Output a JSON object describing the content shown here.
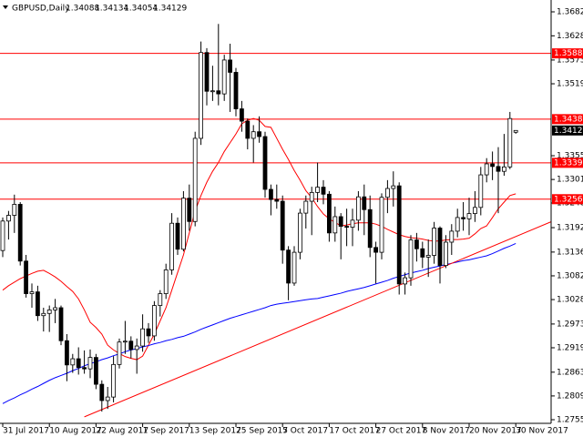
{
  "chart_data": {
    "type": "candlestick",
    "title": "GBPUSD,Daily",
    "categories": [
      "31 Jul 2017",
      null,
      null,
      null,
      null,
      null,
      null,
      null,
      "10 Aug 2017",
      null,
      null,
      null,
      null,
      null,
      null,
      null,
      "22 Aug 2017",
      null,
      null,
      null,
      null,
      null,
      null,
      null,
      "1 Sep 2017",
      null,
      null,
      null,
      null,
      null,
      null,
      null,
      "13 Sep 2017",
      null,
      null,
      null,
      null,
      null,
      null,
      null,
      "25 Sep 2017",
      null,
      null,
      null,
      null,
      null,
      null,
      null,
      "5 Oct 2017",
      null,
      null,
      null,
      null,
      null,
      null,
      null,
      "17 Oct 2017",
      null,
      null,
      null,
      null,
      null,
      null,
      null,
      "27 Oct 2017",
      null,
      null,
      null,
      null,
      null,
      null,
      null,
      "8 Nov 2017",
      null,
      null,
      null,
      null,
      null,
      null,
      null,
      "20 Nov 2017",
      null,
      null,
      null,
      null,
      null,
      null,
      null,
      "30 Nov 2017"
    ],
    "open": [
      1.314,
      1.3207,
      1.322,
      1.3245,
      1.3116,
      1.3042,
      1.3046,
      1.2992,
      1.2997,
      1.3005,
      1.301,
      1.2935,
      1.288,
      1.2894,
      1.2874,
      1.2871,
      1.2897,
      1.2836,
      1.2799,
      1.2807,
      1.2881,
      1.2932,
      1.2934,
      1.2915,
      1.2923,
      1.2962,
      1.2946,
      1.3015,
      1.3042,
      1.3096,
      1.3202,
      1.3143,
      1.3259,
      1.3206,
      1.3395,
      1.359,
      1.3502,
      1.3503,
      1.3496,
      1.3573,
      1.3545,
      1.3462,
      1.3434,
      1.3395,
      1.341,
      1.3399,
      1.3279,
      1.3256,
      1.3252,
      1.3141,
      1.3066,
      1.3136,
      1.3225,
      1.3252,
      1.3272,
      1.3284,
      1.3268,
      1.318,
      1.3217,
      1.3195,
      1.3193,
      1.3209,
      1.3262,
      1.3233,
      1.3147,
      1.3136,
      1.3261,
      1.3281,
      1.3287,
      1.3064,
      1.3078,
      1.3164,
      1.3144,
      1.3125,
      1.3129,
      1.3191,
      1.3106,
      1.3159,
      1.3184,
      1.3215,
      1.3212,
      1.3224,
      1.3238,
      1.3312,
      1.3337,
      1.3331,
      1.332,
      1.333,
      1.34088
    ],
    "high": [
      1.3215,
      1.323,
      1.3267,
      1.325,
      1.313,
      1.3065,
      1.306,
      1.301,
      1.3015,
      1.303,
      1.3015,
      1.295,
      1.2905,
      1.292,
      1.2913,
      1.2915,
      1.2905,
      1.2845,
      1.283,
      1.29,
      1.294,
      1.298,
      1.2945,
      1.294,
      1.2995,
      1.2975,
      1.3025,
      1.305,
      1.311,
      1.3225,
      1.3215,
      1.3275,
      1.329,
      1.341,
      1.3615,
      1.36,
      1.356,
      1.3655,
      1.3585,
      1.361,
      1.3555,
      1.348,
      1.344,
      1.3425,
      1.3445,
      1.341,
      1.329,
      1.329,
      1.3265,
      1.315,
      1.315,
      1.3235,
      1.3265,
      1.3285,
      1.334,
      1.33,
      1.3275,
      1.324,
      1.3225,
      1.3235,
      1.3235,
      1.3275,
      1.329,
      1.3265,
      1.316,
      1.327,
      1.33,
      1.332,
      1.3295,
      1.309,
      1.3175,
      1.318,
      1.316,
      1.3165,
      1.3205,
      1.3195,
      1.3175,
      1.32,
      1.3235,
      1.325,
      1.326,
      1.3275,
      1.333,
      1.335,
      1.3365,
      1.3375,
      1.3405,
      1.3455,
      1.34134
    ],
    "low": [
      1.3125,
      1.3165,
      1.318,
      1.3106,
      1.3033,
      1.301,
      1.298,
      1.2956,
      1.2955,
      1.2975,
      1.2925,
      1.2843,
      1.2862,
      1.2858,
      1.286,
      1.285,
      1.2825,
      1.2774,
      1.278,
      1.2795,
      1.2872,
      1.2905,
      1.2895,
      1.286,
      1.291,
      1.293,
      1.2935,
      1.299,
      1.303,
      1.3085,
      1.313,
      1.3138,
      1.3185,
      1.3195,
      1.338,
      1.347,
      1.348,
      1.347,
      1.348,
      1.3455,
      1.3445,
      1.341,
      1.337,
      1.334,
      1.3385,
      1.326,
      1.322,
      1.3235,
      1.311,
      1.3027,
      1.306,
      1.312,
      1.319,
      1.3175,
      1.325,
      1.3245,
      1.316,
      1.316,
      1.312,
      1.315,
      1.315,
      1.3185,
      1.3175,
      1.3125,
      1.3065,
      1.312,
      1.3225,
      1.324,
      1.304,
      1.304,
      1.306,
      1.3115,
      1.31,
      1.308,
      1.311,
      1.3065,
      1.31,
      1.313,
      1.317,
      1.3185,
      1.3175,
      1.3205,
      1.322,
      1.3295,
      1.33,
      1.3225,
      1.331,
      1.3325,
      1.34054
    ],
    "close": [
      1.3207,
      1.322,
      1.3245,
      1.3116,
      1.3042,
      1.3046,
      1.2992,
      1.2997,
      1.3005,
      1.301,
      1.2935,
      1.288,
      1.2894,
      1.2874,
      1.2871,
      1.2897,
      1.2836,
      1.2799,
      1.2807,
      1.2881,
      1.2932,
      1.2934,
      1.2915,
      1.2923,
      1.2962,
      1.2946,
      1.3015,
      1.3042,
      1.3096,
      1.3202,
      1.3143,
      1.3259,
      1.3206,
      1.3395,
      1.359,
      1.3502,
      1.3503,
      1.3496,
      1.3573,
      1.3545,
      1.3462,
      1.3434,
      1.3395,
      1.341,
      1.3399,
      1.3279,
      1.3256,
      1.3252,
      1.3141,
      1.3066,
      1.3136,
      1.3225,
      1.3252,
      1.3272,
      1.3284,
      1.3268,
      1.318,
      1.3217,
      1.3195,
      1.3193,
      1.3209,
      1.3262,
      1.3233,
      1.3147,
      1.3136,
      1.3261,
      1.3281,
      1.3287,
      1.3064,
      1.3078,
      1.3164,
      1.3144,
      1.3125,
      1.3129,
      1.3191,
      1.3106,
      1.3159,
      1.3184,
      1.3215,
      1.3212,
      1.3224,
      1.3238,
      1.3312,
      1.3337,
      1.3331,
      1.332,
      1.333,
      1.344,
      1.34129
    ],
    "up_color": "#ffffff",
    "down_color": "#000000",
    "lines": [
      {
        "color": "#ff0000",
        "values": [
          1.305,
          1.306,
          1.3068,
          1.3076,
          1.3082,
          1.3088,
          1.3093,
          1.3095,
          1.3088,
          1.308,
          1.307,
          1.3058,
          1.3047,
          1.303,
          1.3005,
          1.2977,
          1.2965,
          1.295,
          1.2925,
          1.2914,
          1.2906,
          1.2899,
          1.2895,
          1.2892,
          1.29,
          1.2925,
          1.295,
          1.298,
          1.301,
          1.305,
          1.309,
          1.313,
          1.318,
          1.323,
          1.3265,
          1.3295,
          1.332,
          1.334,
          1.3365,
          1.3385,
          1.3405,
          1.3428,
          1.3436,
          1.344,
          1.3436,
          1.3422,
          1.342,
          1.3395,
          1.337,
          1.3347,
          1.3322,
          1.33,
          1.3276,
          1.326,
          1.324,
          1.3223,
          1.3212,
          1.3204,
          1.3196,
          1.3198,
          1.3201,
          1.3203,
          1.3203,
          1.3203,
          1.32,
          1.3195,
          1.3188,
          1.3182,
          1.3176,
          1.3172,
          1.3169,
          1.3168,
          1.3166,
          1.3163,
          1.3161,
          1.3162,
          1.3164,
          1.3165,
          1.3165,
          1.3166,
          1.3168,
          1.3178,
          1.319,
          1.3196,
          1.3215,
          1.3235,
          1.325,
          1.3265,
          1.3269
        ]
      },
      {
        "color": "#0000ff",
        "values": [
          1.2792,
          1.2799,
          1.2805,
          1.2812,
          1.2818,
          1.2825,
          1.2831,
          1.2838,
          1.2845,
          1.2851,
          1.2856,
          1.2861,
          1.2867,
          1.2872,
          1.2878,
          1.2883,
          1.2887,
          1.2892,
          1.2896,
          1.2901,
          1.2905,
          1.291,
          1.2914,
          1.2917,
          1.2921,
          1.2924,
          1.2928,
          1.2931,
          1.2935,
          1.2938,
          1.2942,
          1.2945,
          1.295,
          1.2955,
          1.2961,
          1.2966,
          1.2971,
          1.2976,
          1.2981,
          1.2986,
          1.299,
          1.2994,
          1.2998,
          1.3002,
          1.3006,
          1.301,
          1.3015,
          1.3018,
          1.302,
          1.3022,
          1.3024,
          1.3026,
          1.3028,
          1.303,
          1.3031,
          1.3034,
          1.3037,
          1.304,
          1.3043,
          1.3047,
          1.305,
          1.3053,
          1.3056,
          1.306,
          1.3064,
          1.3068,
          1.3072,
          1.3077,
          1.3081,
          1.3085,
          1.3089,
          1.3092,
          1.3095,
          1.3099,
          1.3102,
          1.3105,
          1.3108,
          1.3111,
          1.3114,
          1.3117,
          1.3119,
          1.3122,
          1.3125,
          1.3128,
          1.3133,
          1.3139,
          1.3145,
          1.315,
          1.3156
        ]
      }
    ],
    "trendline": {
      "color": "#ff0000",
      "x": [
        14,
        94
      ],
      "values": [
        1.2762,
        1.3205
      ]
    },
    "levels": [
      1.35881,
      1.34386,
      1.33393,
      1.32567
    ],
    "level_color": "#ff0000",
    "ylim": [
      1.27555,
      1.36825
    ],
    "yticks": [
      1.36825,
      {
        "value": 1.3628,
        "label": "1.36280"
      },
      {
        "value": 1.3573,
        "label": "1.35730"
      },
      {
        "value": 1.3519,
        "label": "1.35190"
      },
      1.33555,
      1.33015,
      {
        "value": 1.3248,
        "label": "1.32480"
      },
      {
        "value": 1.3192,
        "label": "1.31920"
      },
      1.31365,
      1.30825,
      1.30285,
      {
        "value": 1.2973,
        "label": "1.29730"
      },
      {
        "value": 1.2919,
        "label": "1.29190"
      },
      1.28635,
      1.28095,
      1.27555
    ]
  }
}
